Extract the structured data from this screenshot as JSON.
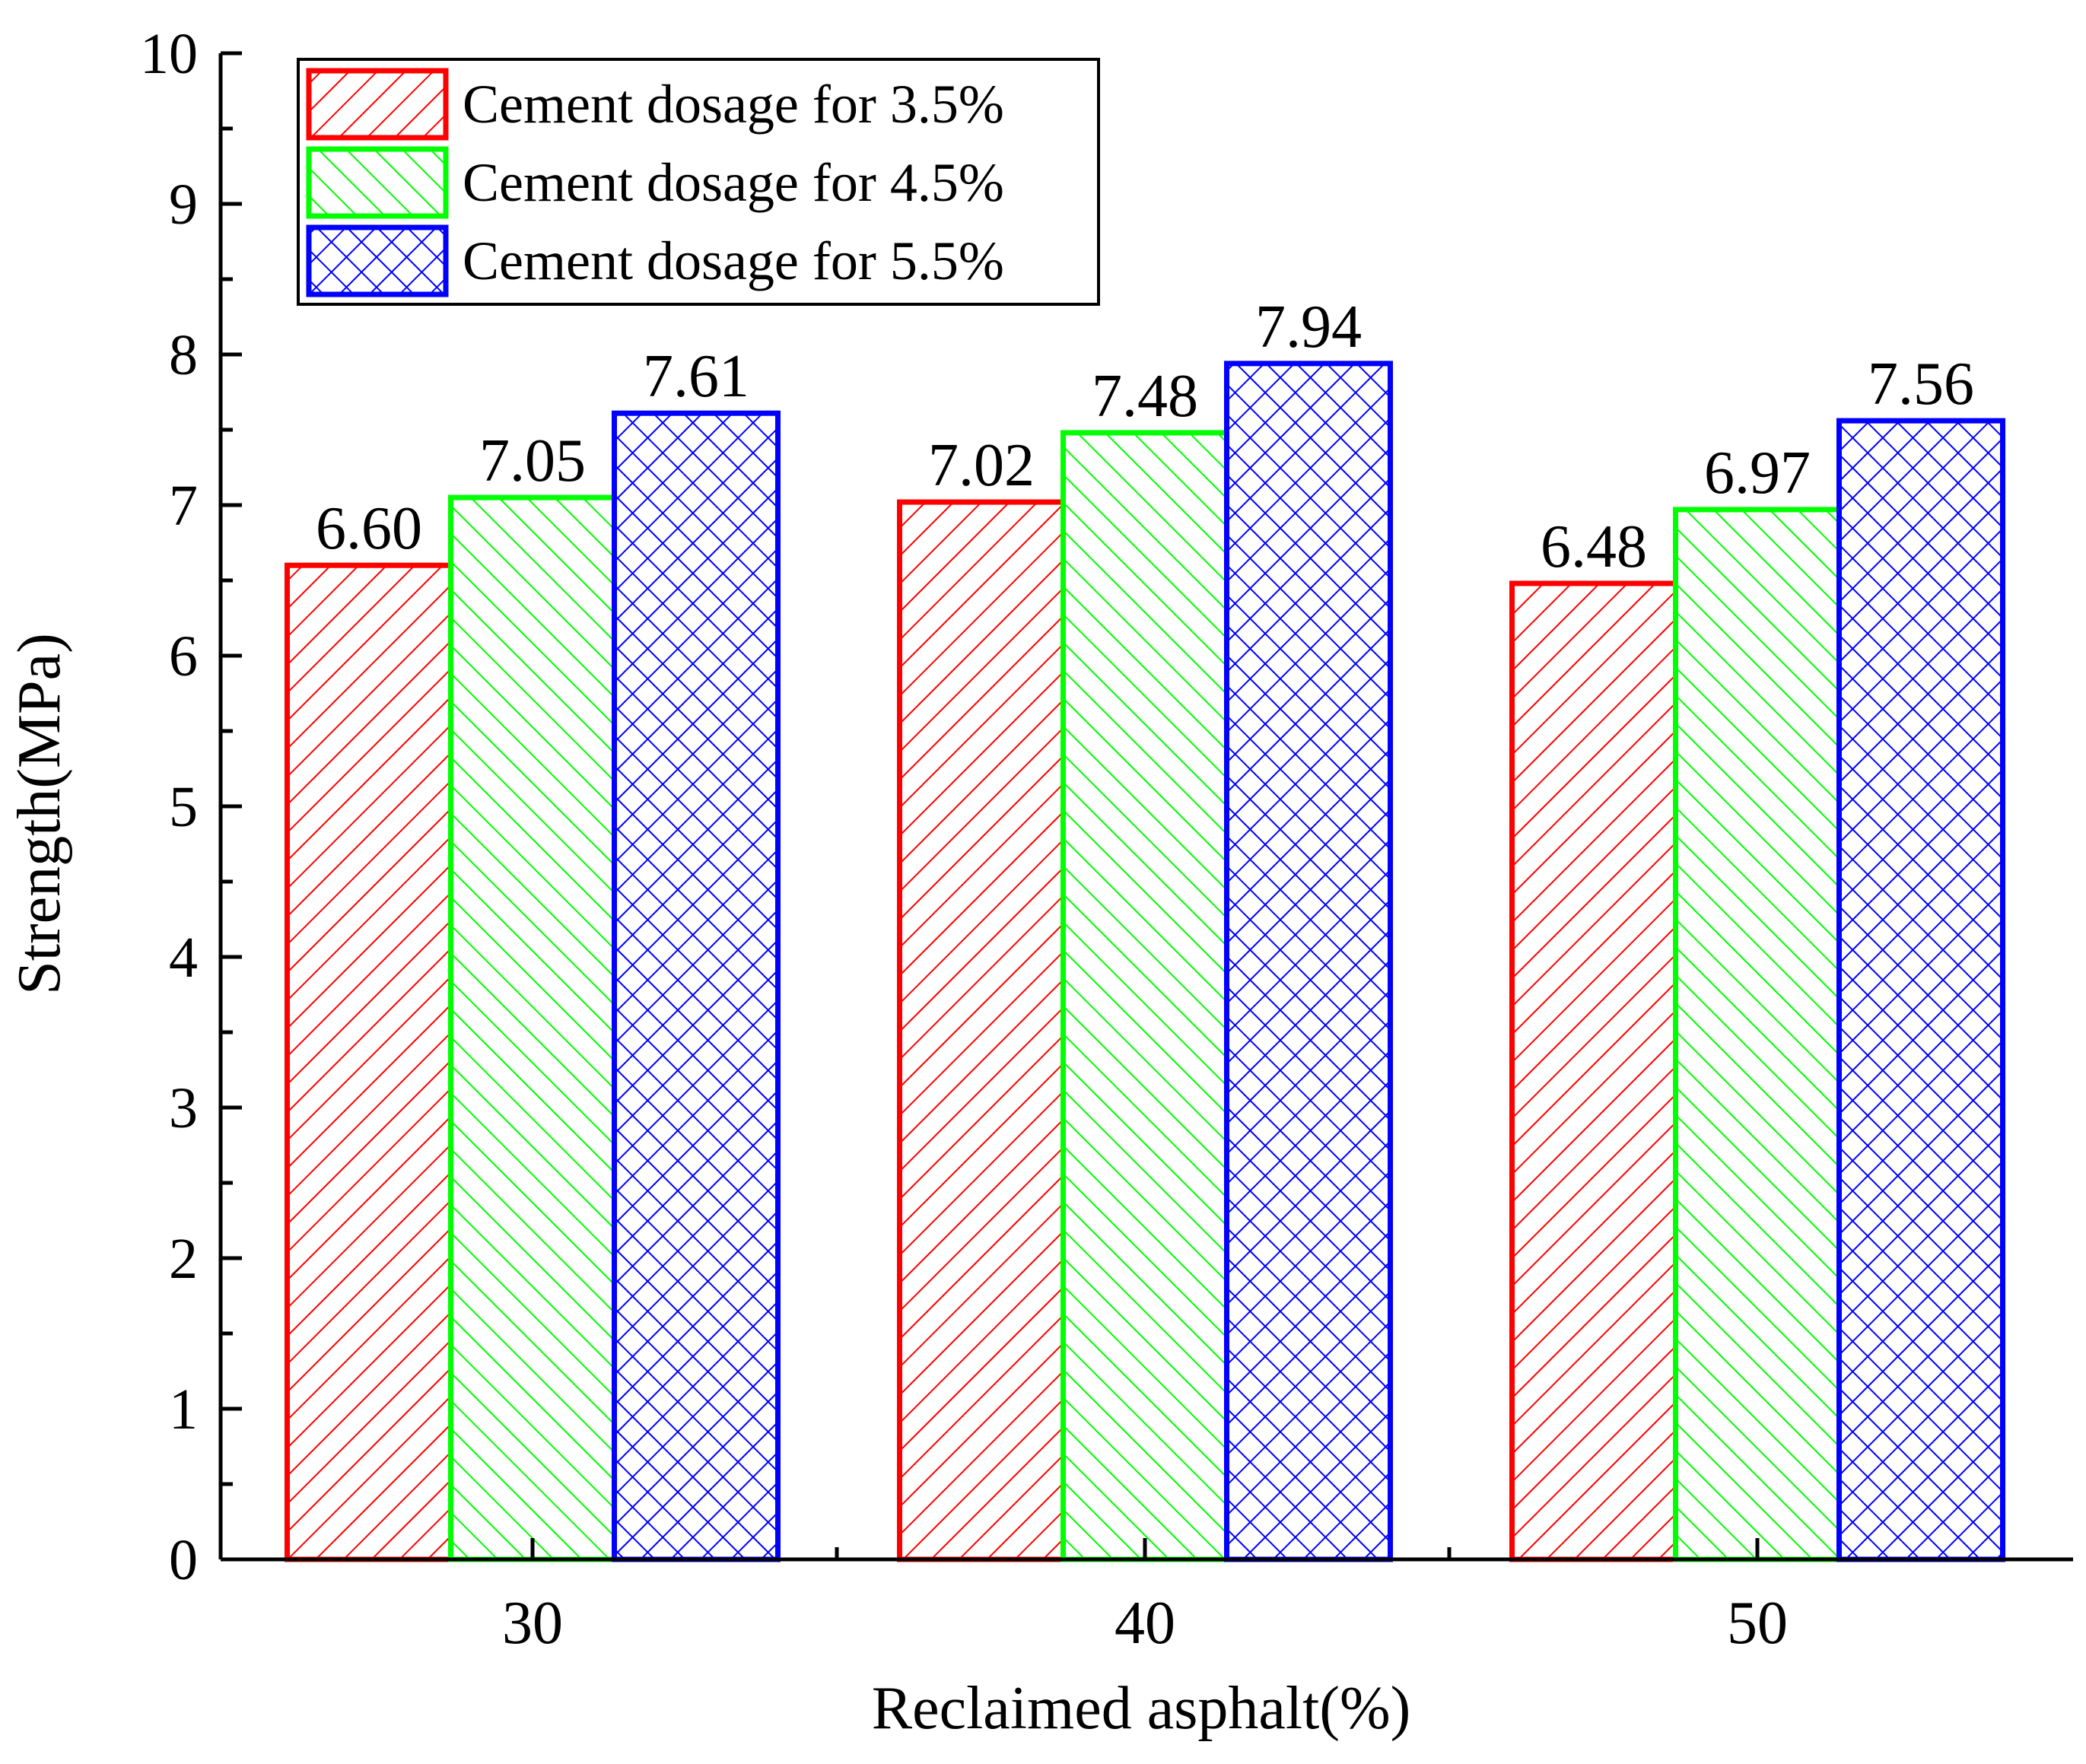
{
  "colors": {
    "series_1": "#ff0000",
    "series_2": "#00ff00",
    "series_3": "#0000ff",
    "axis": "#000000"
  },
  "chart_data": {
    "type": "bar",
    "title": "",
    "xlabel": "Reclaimed asphalt(%)",
    "ylabel": "Strength(MPa)",
    "ylim": [
      0,
      10
    ],
    "yticks": [
      "0",
      "1",
      "2",
      "3",
      "4",
      "5",
      "6",
      "7",
      "8",
      "9",
      "10"
    ],
    "categories": [
      "30",
      "40",
      "50"
    ],
    "legend_position": "top-left",
    "series": [
      {
        "name": "Cement dosage for 3.5%",
        "values": [
          6.6,
          7.02,
          6.48
        ],
        "labels": [
          "6.60",
          "7.02",
          "6.48"
        ],
        "pattern": "hatch-forward"
      },
      {
        "name": "Cement dosage for 4.5%",
        "values": [
          7.05,
          7.48,
          6.97
        ],
        "labels": [
          "7.05",
          "7.48",
          "6.97"
        ],
        "pattern": "hatch-backward"
      },
      {
        "name": "Cement dosage for 5.5%",
        "values": [
          7.61,
          7.94,
          7.56
        ],
        "labels": [
          "7.61",
          "7.94",
          "7.56"
        ],
        "pattern": "crosshatch"
      }
    ]
  }
}
